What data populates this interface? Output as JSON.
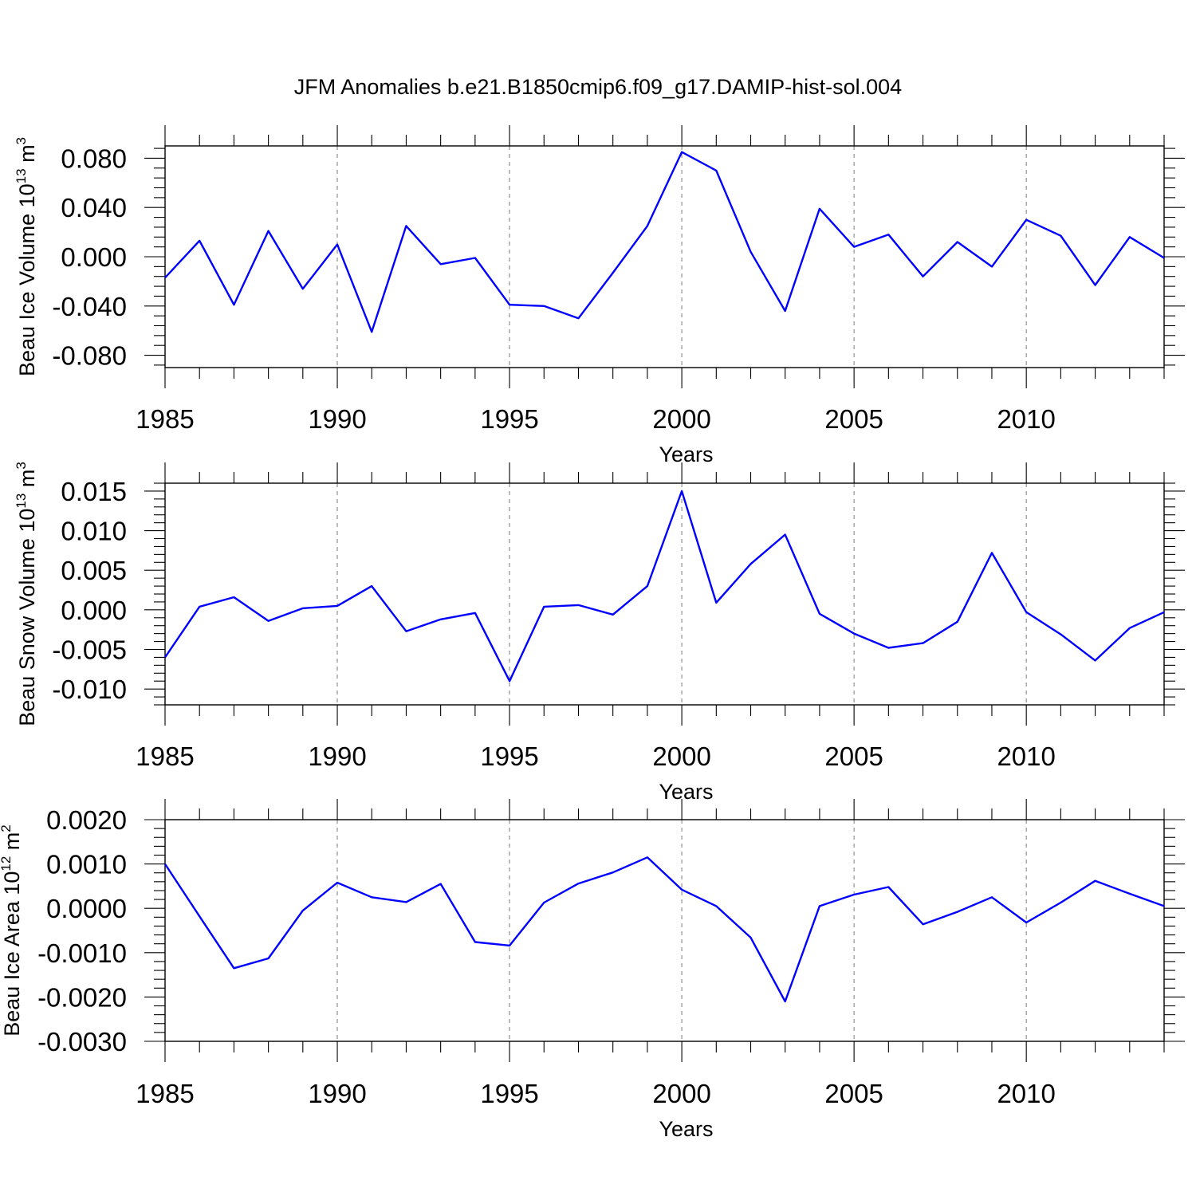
{
  "title": "JFM Anomalies b.e21.B1850cmip6.f09_g17.DAMIP-hist-sol.004",
  "line_color": "#0000FF",
  "chart_data": [
    {
      "type": "line",
      "title": "",
      "ylabel_text": "Beau Ice Volume 10",
      "ylabel_exp": "13",
      "ylabel_unit": " m",
      "ylabel_unit_exp": "3",
      "xlabel": "Years",
      "xlim": [
        1985,
        2014
      ],
      "ylim": [
        -0.09,
        0.09
      ],
      "x_tick_values": [
        1985,
        1990,
        1995,
        2000,
        2005,
        2010
      ],
      "x_tick_labels": [
        "1985",
        "1990",
        "1995",
        "2000",
        "2005",
        "2010"
      ],
      "y_tick_values": [
        0.08,
        0.04,
        0.0,
        -0.04,
        -0.08
      ],
      "y_tick_labels": [
        "0.080",
        "0.040",
        "0.000",
        "-0.040",
        "-0.080"
      ],
      "grid_x": [
        1990,
        1995,
        2000,
        2005,
        2010
      ],
      "x": [
        1985,
        1986,
        1987,
        1988,
        1989,
        1990,
        1991,
        1992,
        1993,
        1994,
        1995,
        1996,
        1997,
        1998,
        1999,
        2000,
        2001,
        2002,
        2003,
        2004,
        2005,
        2006,
        2007,
        2008,
        2009,
        2010,
        2011,
        2012,
        2013,
        2014
      ],
      "series": [
        {
          "name": "Beau Ice Volume",
          "values": [
            -0.017,
            0.013,
            -0.039,
            0.021,
            -0.026,
            0.01,
            -0.061,
            0.025,
            -0.006,
            -0.001,
            -0.039,
            -0.04,
            -0.05,
            -0.013,
            0.025,
            0.085,
            0.07,
            0.004,
            -0.044,
            0.039,
            0.008,
            0.018,
            -0.016,
            0.012,
            -0.008,
            0.03,
            0.017,
            -0.023,
            0.016,
            -0.001
          ]
        }
      ]
    },
    {
      "type": "line",
      "title": "",
      "ylabel_text": "Beau Snow Volume 10",
      "ylabel_exp": "13",
      "ylabel_unit": " m",
      "ylabel_unit_exp": "3",
      "xlabel": "Years",
      "xlim": [
        1985,
        2014
      ],
      "ylim": [
        -0.012,
        0.016
      ],
      "x_tick_values": [
        1985,
        1990,
        1995,
        2000,
        2005,
        2010
      ],
      "x_tick_labels": [
        "1985",
        "1990",
        "1995",
        "2000",
        "2005",
        "2010"
      ],
      "y_tick_values": [
        0.015,
        0.01,
        0.005,
        0.0,
        -0.005,
        -0.01
      ],
      "y_tick_labels": [
        "0.015",
        "0.010",
        "0.005",
        "0.000",
        "-0.005",
        "-0.010"
      ],
      "grid_x": [
        1990,
        1995,
        2000,
        2005,
        2010
      ],
      "x": [
        1985,
        1986,
        1987,
        1988,
        1989,
        1990,
        1991,
        1992,
        1993,
        1994,
        1995,
        1996,
        1997,
        1998,
        1999,
        2000,
        2001,
        2002,
        2003,
        2004,
        2005,
        2006,
        2007,
        2008,
        2009,
        2010,
        2011,
        2012,
        2013,
        2014
      ],
      "series": [
        {
          "name": "Beau Snow Volume",
          "values": [
            -0.006,
            0.0004,
            0.0016,
            -0.0014,
            0.0002,
            0.0005,
            0.003,
            -0.0027,
            -0.0012,
            -0.0004,
            -0.009,
            0.0004,
            0.0006,
            -0.0006,
            0.003,
            0.015,
            0.0009,
            0.0058,
            0.0095,
            -0.0005,
            -0.003,
            -0.0048,
            -0.0042,
            -0.0015,
            0.0072,
            -0.0003,
            -0.0031,
            -0.0064,
            -0.0023,
            -0.0003
          ]
        }
      ]
    },
    {
      "type": "line",
      "title": "",
      "ylabel_text": "Beau Ice Area 10",
      "ylabel_exp": "12",
      "ylabel_unit": " m",
      "ylabel_unit_exp": "2",
      "xlabel": "Years",
      "xlim": [
        1985,
        2014
      ],
      "ylim": [
        -0.003,
        0.002
      ],
      "x_tick_values": [
        1985,
        1990,
        1995,
        2000,
        2005,
        2010
      ],
      "x_tick_labels": [
        "1985",
        "1990",
        "1995",
        "2000",
        "2005",
        "2010"
      ],
      "y_tick_values": [
        0.002,
        0.001,
        0.0,
        -0.001,
        -0.002,
        -0.003
      ],
      "y_tick_labels": [
        "0.0020",
        "0.0010",
        "0.0000",
        "-0.0010",
        "-0.0020",
        "-0.0030"
      ],
      "grid_x": [
        1990,
        1995,
        2000,
        2005,
        2010
      ],
      "x": [
        1985,
        1986,
        1987,
        1988,
        1989,
        1990,
        1991,
        1992,
        1993,
        1994,
        1995,
        1996,
        1997,
        1998,
        1999,
        2000,
        2001,
        2002,
        2003,
        2004,
        2005,
        2006,
        2007,
        2008,
        2009,
        2010,
        2011,
        2012,
        2013,
        2014
      ],
      "series": [
        {
          "name": "Beau Ice Area",
          "values": [
            0.001,
            -0.00018,
            -0.00135,
            -0.00113,
            -5e-05,
            0.00058,
            0.00025,
            0.00014,
            0.00055,
            -0.00076,
            -0.00084,
            0.00013,
            0.00056,
            0.00081,
            0.00115,
            0.00042,
            5e-05,
            -0.00066,
            -0.0021,
            5e-05,
            0.00031,
            0.00048,
            -0.00036,
            -8e-05,
            0.00025,
            -0.00032,
            0.00013,
            0.00062,
            0.00033,
            5e-05
          ]
        }
      ]
    }
  ]
}
